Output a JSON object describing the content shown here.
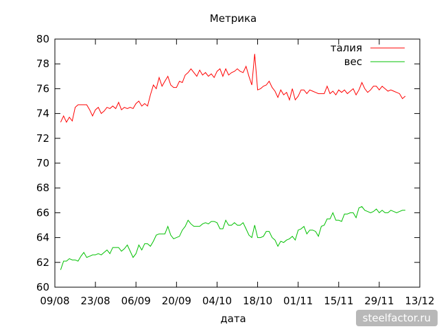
{
  "chart_data": {
    "type": "line",
    "title": "Метрика",
    "xlabel": "дата",
    "ylabel": "",
    "x_ticks": [
      "09/08",
      "23/08",
      "06/09",
      "20/09",
      "04/10",
      "18/10",
      "01/11",
      "15/11",
      "29/11",
      "13/12"
    ],
    "xlim": [
      0,
      126
    ],
    "ylim": [
      60,
      80
    ],
    "y_ticks": [
      60,
      62,
      64,
      66,
      68,
      70,
      72,
      74,
      76,
      78,
      80
    ],
    "grid": false,
    "legend_position": "top-right",
    "series": [
      {
        "name": "талия",
        "color": "#ff0000",
        "points": [
          [
            2,
            73.3
          ],
          [
            3,
            73.8
          ],
          [
            4,
            73.3
          ],
          [
            5,
            73.7
          ],
          [
            6,
            73.4
          ],
          [
            7,
            74.5
          ],
          [
            8,
            74.7
          ],
          [
            10,
            74.7
          ],
          [
            11,
            74.7
          ],
          [
            12,
            74.3
          ],
          [
            13,
            73.8
          ],
          [
            14,
            74.3
          ],
          [
            15,
            74.5
          ],
          [
            16,
            74.0
          ],
          [
            17,
            74.2
          ],
          [
            18,
            74.5
          ],
          [
            19,
            74.4
          ],
          [
            20,
            74.6
          ],
          [
            21,
            74.4
          ],
          [
            22,
            74.9
          ],
          [
            23,
            74.3
          ],
          [
            24,
            74.5
          ],
          [
            25,
            74.4
          ],
          [
            26,
            74.5
          ],
          [
            27,
            74.4
          ],
          [
            28,
            74.8
          ],
          [
            29,
            75.0
          ],
          [
            30,
            74.6
          ],
          [
            31,
            74.8
          ],
          [
            32,
            74.6
          ],
          [
            33,
            75.5
          ],
          [
            34,
            76.3
          ],
          [
            35,
            76.0
          ],
          [
            36,
            76.9
          ],
          [
            37,
            76.2
          ],
          [
            38,
            76.6
          ],
          [
            39,
            77.0
          ],
          [
            40,
            76.3
          ],
          [
            41,
            76.1
          ],
          [
            42,
            76.1
          ],
          [
            43,
            76.6
          ],
          [
            44,
            76.5
          ],
          [
            45,
            77.1
          ],
          [
            46,
            77.3
          ],
          [
            47,
            77.6
          ],
          [
            48,
            77.3
          ],
          [
            49,
            77.0
          ],
          [
            50,
            77.5
          ],
          [
            51,
            77.1
          ],
          [
            52,
            77.3
          ],
          [
            53,
            77.0
          ],
          [
            54,
            77.2
          ],
          [
            55,
            76.9
          ],
          [
            56,
            77.4
          ],
          [
            57,
            77.6
          ],
          [
            58,
            77.0
          ],
          [
            59,
            77.6
          ],
          [
            60,
            77.1
          ],
          [
            61,
            77.3
          ],
          [
            62,
            77.4
          ],
          [
            63,
            77.6
          ],
          [
            64,
            77.4
          ],
          [
            65,
            77.3
          ],
          [
            66,
            77.8
          ],
          [
            67,
            77.0
          ],
          [
            68,
            76.3
          ],
          [
            69,
            78.8
          ],
          [
            70,
            75.9
          ],
          [
            71,
            76.0
          ],
          [
            72,
            76.2
          ],
          [
            73,
            76.3
          ],
          [
            74,
            76.6
          ],
          [
            75,
            76.1
          ],
          [
            76,
            75.8
          ],
          [
            77,
            75.3
          ],
          [
            78,
            75.9
          ],
          [
            79,
            75.5
          ],
          [
            80,
            75.7
          ],
          [
            81,
            75.1
          ],
          [
            82,
            76.0
          ],
          [
            83,
            75.1
          ],
          [
            84,
            75.4
          ],
          [
            85,
            75.9
          ],
          [
            86,
            75.9
          ],
          [
            87,
            75.6
          ],
          [
            88,
            75.9
          ],
          [
            89,
            75.8
          ],
          [
            90,
            75.7
          ],
          [
            91,
            75.6
          ],
          [
            92,
            75.6
          ],
          [
            93,
            75.6
          ],
          [
            94,
            76.2
          ],
          [
            95,
            75.6
          ],
          [
            96,
            75.8
          ],
          [
            97,
            75.5
          ],
          [
            98,
            75.9
          ],
          [
            99,
            75.7
          ],
          [
            100,
            75.9
          ],
          [
            101,
            75.6
          ],
          [
            102,
            75.8
          ],
          [
            103,
            76.0
          ],
          [
            104,
            75.5
          ],
          [
            105,
            75.9
          ],
          [
            106,
            76.5
          ],
          [
            107,
            76.0
          ],
          [
            108,
            75.7
          ],
          [
            109,
            75.9
          ],
          [
            110,
            76.2
          ],
          [
            111,
            76.2
          ],
          [
            112,
            75.9
          ],
          [
            113,
            76.2
          ],
          [
            114,
            76.0
          ],
          [
            115,
            75.8
          ],
          [
            116,
            75.9
          ],
          [
            117,
            75.8
          ],
          [
            118,
            75.7
          ],
          [
            119,
            75.6
          ],
          [
            120,
            75.2
          ],
          [
            121,
            75.4
          ]
        ]
      },
      {
        "name": "вес",
        "color": "#00c000",
        "points": [
          [
            2,
            61.4
          ],
          [
            3,
            62.1
          ],
          [
            4,
            62.1
          ],
          [
            5,
            62.3
          ],
          [
            6,
            62.2
          ],
          [
            7,
            62.2
          ],
          [
            8,
            62.1
          ],
          [
            9,
            62.5
          ],
          [
            10,
            62.8
          ],
          [
            11,
            62.4
          ],
          [
            12,
            62.5
          ],
          [
            13,
            62.6
          ],
          [
            14,
            62.6
          ],
          [
            15,
            62.7
          ],
          [
            16,
            62.6
          ],
          [
            17,
            62.8
          ],
          [
            18,
            63.0
          ],
          [
            19,
            62.7
          ],
          [
            20,
            63.2
          ],
          [
            21,
            63.2
          ],
          [
            22,
            63.2
          ],
          [
            23,
            62.9
          ],
          [
            24,
            63.1
          ],
          [
            25,
            63.4
          ],
          [
            26,
            62.9
          ],
          [
            27,
            62.4
          ],
          [
            28,
            62.7
          ],
          [
            29,
            63.4
          ],
          [
            30,
            63.0
          ],
          [
            31,
            63.5
          ],
          [
            32,
            63.5
          ],
          [
            33,
            63.3
          ],
          [
            34,
            63.7
          ],
          [
            35,
            64.2
          ],
          [
            36,
            64.3
          ],
          [
            37,
            64.3
          ],
          [
            38,
            64.3
          ],
          [
            39,
            64.9
          ],
          [
            40,
            64.2
          ],
          [
            41,
            63.9
          ],
          [
            42,
            64.0
          ],
          [
            43,
            64.1
          ],
          [
            44,
            64.6
          ],
          [
            45,
            64.9
          ],
          [
            46,
            65.4
          ],
          [
            47,
            65.1
          ],
          [
            48,
            64.9
          ],
          [
            49,
            64.9
          ],
          [
            50,
            64.9
          ],
          [
            51,
            65.1
          ],
          [
            52,
            65.2
          ],
          [
            53,
            65.1
          ],
          [
            54,
            65.3
          ],
          [
            55,
            65.3
          ],
          [
            56,
            65.2
          ],
          [
            57,
            64.7
          ],
          [
            58,
            64.7
          ],
          [
            59,
            65.4
          ],
          [
            60,
            65.0
          ],
          [
            61,
            65.0
          ],
          [
            62,
            65.2
          ],
          [
            63,
            65.0
          ],
          [
            64,
            65.0
          ],
          [
            65,
            65.2
          ],
          [
            66,
            64.7
          ],
          [
            67,
            64.2
          ],
          [
            68,
            64.0
          ],
          [
            69,
            65.0
          ],
          [
            70,
            64.0
          ],
          [
            71,
            64.0
          ],
          [
            72,
            64.1
          ],
          [
            73,
            64.5
          ],
          [
            74,
            64.5
          ],
          [
            75,
            64.0
          ],
          [
            76,
            63.8
          ],
          [
            77,
            63.3
          ],
          [
            78,
            63.7
          ],
          [
            79,
            63.6
          ],
          [
            80,
            63.8
          ],
          [
            81,
            63.9
          ],
          [
            82,
            64.1
          ],
          [
            83,
            63.8
          ],
          [
            84,
            64.6
          ],
          [
            85,
            64.7
          ],
          [
            86,
            64.9
          ],
          [
            87,
            64.3
          ],
          [
            88,
            64.6
          ],
          [
            89,
            64.6
          ],
          [
            90,
            64.5
          ],
          [
            91,
            64.1
          ],
          [
            92,
            64.9
          ],
          [
            93,
            65.0
          ],
          [
            94,
            65.5
          ],
          [
            95,
            65.5
          ],
          [
            96,
            66.0
          ],
          [
            97,
            65.4
          ],
          [
            98,
            65.4
          ],
          [
            99,
            65.3
          ],
          [
            100,
            65.9
          ],
          [
            101,
            65.9
          ],
          [
            102,
            66.0
          ],
          [
            103,
            66.0
          ],
          [
            104,
            65.6
          ],
          [
            105,
            66.4
          ],
          [
            106,
            66.5
          ],
          [
            107,
            66.2
          ],
          [
            108,
            66.1
          ],
          [
            109,
            66.0
          ],
          [
            110,
            66.1
          ],
          [
            111,
            66.3
          ],
          [
            112,
            66.0
          ],
          [
            113,
            66.2
          ],
          [
            114,
            66.0
          ],
          [
            115,
            66.0
          ],
          [
            116,
            66.2
          ],
          [
            117,
            66.1
          ],
          [
            118,
            66.0
          ],
          [
            119,
            66.1
          ],
          [
            120,
            66.2
          ],
          [
            121,
            66.2
          ]
        ]
      }
    ]
  },
  "watermark": "steelfactor.ru"
}
